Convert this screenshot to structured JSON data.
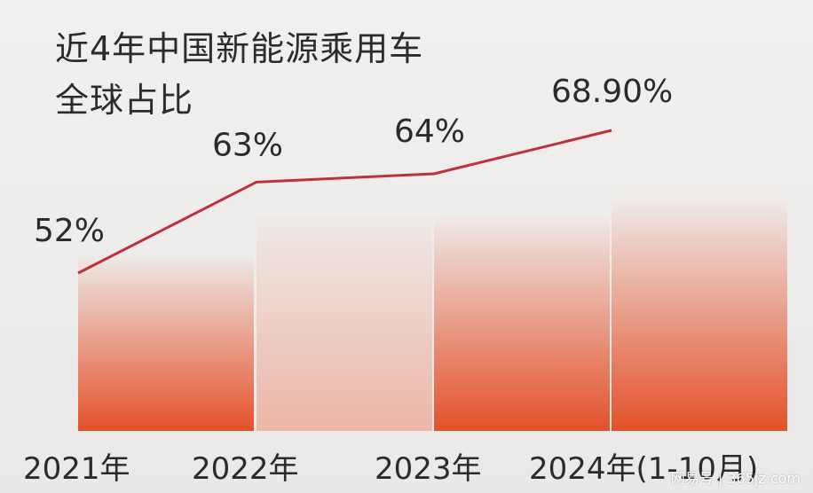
{
  "chart_data": {
    "type": "bar",
    "title_lines": [
      "近4年中国新能源乘用车",
      "全球占比"
    ],
    "categories": [
      "2021年",
      "2022年",
      "2023年",
      "2024年(1-10月)"
    ],
    "values": [
      52,
      63,
      64,
      68.9
    ],
    "value_labels": [
      "52%",
      "63%",
      "64%",
      "68.90%"
    ],
    "line_overlay": true,
    "ylim": [
      0,
      100
    ],
    "colors": {
      "bar": "#e4512a",
      "bar_muted": "#edb4a4",
      "line": "#c0303a",
      "text": "#2b2b2b"
    }
  },
  "watermark": "网易号 | 365jz.com"
}
